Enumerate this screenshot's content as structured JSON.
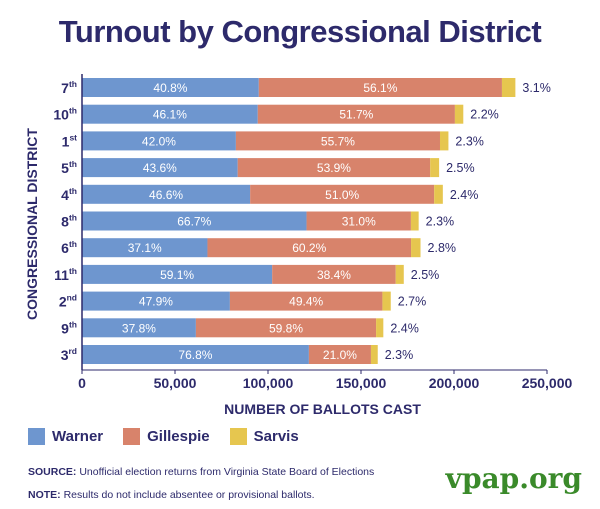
{
  "title": "Turnout by Congressional District",
  "colors": {
    "Warner": "#6e96cf",
    "Gillespie": "#d8836b",
    "Sarvis": "#e6c64f",
    "navy": "#2d2a6b",
    "brand": "#3a8a2a"
  },
  "chart_data": {
    "type": "bar",
    "orientation": "horizontal",
    "stacked": true,
    "title": "Turnout by Congressional District",
    "xlabel": "NUMBER OF BALLOTS CAST",
    "ylabel": "CONGRESSIONAL DISTRICT",
    "xlim": [
      0,
      250000
    ],
    "xticks": [
      0,
      50000,
      100000,
      150000,
      200000,
      250000
    ],
    "xtick_labels": [
      "0",
      "50,000",
      "100,000",
      "150,000",
      "200,000",
      "250,000"
    ],
    "categories": [
      {
        "num": "7",
        "suf": "th"
      },
      {
        "num": "10",
        "suf": "th"
      },
      {
        "num": "1",
        "suf": "st"
      },
      {
        "num": "5",
        "suf": "th"
      },
      {
        "num": "4",
        "suf": "th"
      },
      {
        "num": "8",
        "suf": "th"
      },
      {
        "num": "6",
        "suf": "th"
      },
      {
        "num": "11",
        "suf": "th"
      },
      {
        "num": "2",
        "suf": "nd"
      },
      {
        "num": "9",
        "suf": "th"
      },
      {
        "num": "3",
        "suf": "rd"
      }
    ],
    "totals": [
      233000,
      205000,
      197000,
      192000,
      194000,
      181000,
      182000,
      173000,
      166000,
      162000,
      159000
    ],
    "series": [
      {
        "name": "Warner",
        "labels": [
          "40.8%",
          "46.1%",
          "42.0%",
          "43.6%",
          "46.6%",
          "66.7%",
          "37.1%",
          "59.1%",
          "47.9%",
          "37.8%",
          "76.8%"
        ]
      },
      {
        "name": "Gillespie",
        "labels": [
          "56.1%",
          "51.7%",
          "55.7%",
          "53.9%",
          "51.0%",
          "31.0%",
          "60.2%",
          "38.4%",
          "49.4%",
          "59.8%",
          "21.0%"
        ]
      },
      {
        "name": "Sarvis",
        "labels": [
          "3.1%",
          "2.2%",
          "2.3%",
          "2.5%",
          "2.4%",
          "2.3%",
          "2.8%",
          "2.5%",
          "2.7%",
          "2.4%",
          "2.3%"
        ]
      }
    ]
  },
  "legend": [
    {
      "name": "Warner"
    },
    {
      "name": "Gillespie"
    },
    {
      "name": "Sarvis"
    }
  ],
  "notes": {
    "source_label": "SOURCE:",
    "source_text": "Unofficial election returns from Virginia State Board of Elections",
    "note_label": "NOTE:",
    "note_text": "Results do not include absentee or provisional ballots."
  },
  "brand": "vpap.org"
}
